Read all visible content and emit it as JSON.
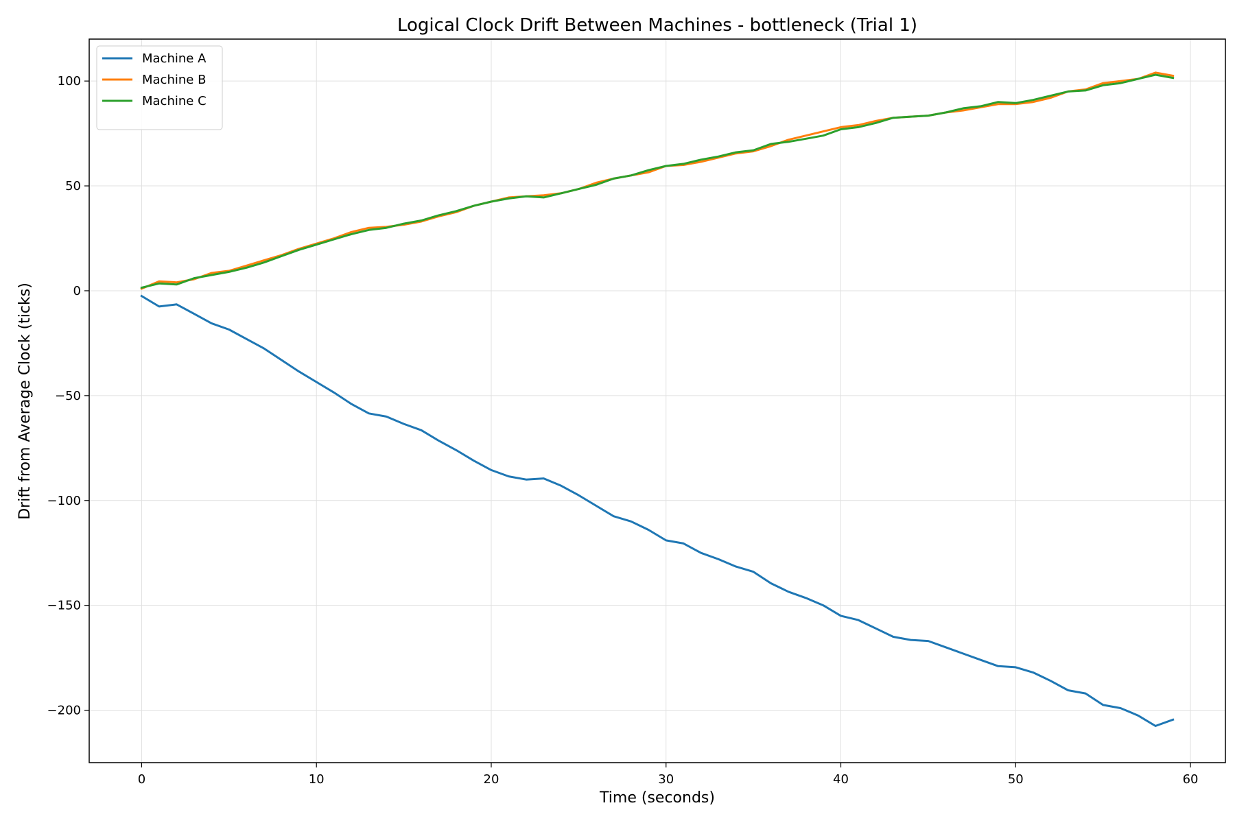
{
  "chart_data": {
    "type": "line",
    "title": "Logical Clock Drift Between Machines - bottleneck (Trial 1)",
    "xlabel": "Time (seconds)",
    "ylabel": "Drift from Average Clock (ticks)",
    "xlim": [
      -3,
      62
    ],
    "ylim": [
      -225,
      120
    ],
    "xticks": [
      0,
      10,
      20,
      30,
      40,
      50,
      60
    ],
    "yticks": [
      100,
      50,
      0,
      -50,
      -100,
      -150,
      -200
    ],
    "ytick_labels": [
      "100",
      "50",
      "0",
      "−50",
      "−100",
      "−150",
      "−200"
    ],
    "grid": true,
    "legend_position": "top-left",
    "x": [
      0,
      1,
      2,
      3,
      4,
      5,
      6,
      7,
      8,
      9,
      10,
      11,
      12,
      13,
      14,
      15,
      16,
      17,
      18,
      19,
      20,
      21,
      22,
      23,
      24,
      25,
      26,
      27,
      28,
      29,
      30,
      31,
      32,
      33,
      34,
      35,
      36,
      37,
      38,
      39,
      40,
      41,
      42,
      43,
      44,
      45,
      46,
      47,
      48,
      49,
      50,
      51,
      52,
      53,
      54,
      55,
      56,
      57,
      58,
      59
    ],
    "series": [
      {
        "name": "Machine A",
        "color": "#1f77b4",
        "values": [
          -2.5,
          -7.5,
          -6.5,
          -11,
          -15.5,
          -18.5,
          -23,
          -27.5,
          -33,
          -38.5,
          -43.5,
          -48.5,
          -54,
          -58.5,
          -60,
          -63.5,
          -66.5,
          -71.5,
          -76,
          -81,
          -85.5,
          -88.5,
          -90,
          -89.5,
          -93,
          -97.5,
          -102.5,
          -107.5,
          -110,
          -114,
          -119,
          -120.5,
          -125,
          -128,
          -131.5,
          -134,
          -139.5,
          -143.5,
          -146.5,
          -150,
          -155,
          -157,
          -161,
          -165,
          -166.5,
          -167,
          -170,
          -173,
          -176,
          -179,
          -179.5,
          -182,
          -186,
          -190.5,
          -192,
          -197.5,
          -199,
          -202.5,
          -207.5,
          -204.5
        ]
      },
      {
        "name": "Machine B",
        "color": "#ff7f0e",
        "values": [
          1,
          4.5,
          4,
          5.5,
          8.5,
          9.5,
          12,
          14.5,
          17,
          20,
          22.5,
          25,
          28,
          30,
          30.5,
          31.5,
          33,
          35.5,
          37.5,
          40.5,
          42.5,
          44.5,
          45,
          45.5,
          46.5,
          48.5,
          51.5,
          53.5,
          55,
          56.5,
          59.5,
          60,
          61.5,
          63.5,
          65.5,
          66.5,
          69,
          72,
          74,
          76,
          78,
          79,
          81,
          82.5,
          83,
          83.5,
          85,
          86,
          87.5,
          89,
          89,
          90,
          92,
          95,
          96,
          99,
          100,
          101,
          104,
          102.5
        ]
      },
      {
        "name": "Machine C",
        "color": "#2ca02c",
        "values": [
          1.5,
          3.5,
          3,
          6,
          7.5,
          9,
          11,
          13.5,
          16.5,
          19.5,
          22,
          24.5,
          27,
          29,
          30,
          32,
          33.5,
          36,
          38,
          40.5,
          42.5,
          44,
          45,
          44.5,
          46.5,
          48.5,
          50.5,
          53.5,
          55,
          57.5,
          59.5,
          60.5,
          62.5,
          64,
          66,
          67,
          70,
          71,
          72.5,
          74,
          77,
          78,
          80,
          82.5,
          83,
          83.5,
          85,
          87,
          88,
          90,
          89.5,
          91,
          93,
          95,
          95.5,
          98,
          99,
          101,
          103,
          101.5
        ]
      }
    ]
  }
}
